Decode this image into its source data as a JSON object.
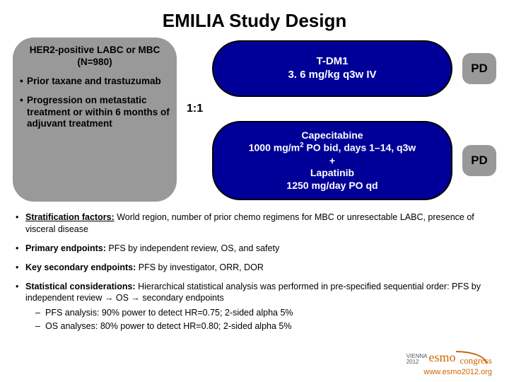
{
  "title": "EMILIA Study Design",
  "colors": {
    "grey_box": "#999999",
    "blue_box": "#000099",
    "accent": "#cc6600",
    "text": "#000000",
    "arm_text": "#ffffff"
  },
  "left_box": {
    "heading": "HER2-positive LABC or MBC (N=980)",
    "bullets": [
      "Prior taxane and trastuzumab",
      "Progression on metastatic treatment or within 6 months of adjuvant treatment"
    ]
  },
  "randomization_ratio": "1:1",
  "arms": {
    "arm1": {
      "line1": "T-DM1",
      "line2": "3. 6 mg/kg q3w IV",
      "pd_label": "PD"
    },
    "arm2": {
      "line1": "Capecitabine",
      "line2_pre": "1000 mg/m",
      "line2_sup": "2",
      "line2_post": " PO bid, days 1–14, q3w",
      "line3": "+",
      "line4": "Lapatinib",
      "line5": "1250 mg/day PO qd",
      "pd_label": "PD"
    }
  },
  "notes": {
    "n1_label": "Stratification factors:",
    "n1_text": " World region, number of prior chemo regimens for MBC or unresectable LABC, presence of visceral disease",
    "n2_label": "Primary endpoints:",
    "n2_text": " PFS by independent review, OS, and safety",
    "n3_label": "Key secondary endpoints:",
    "n3_text": " PFS by investigator, ORR, DOR",
    "n4_label": "Statistical considerations:",
    "n4_text": " Hierarchical statistical analysis was performed in pre-specified sequential order: PFS by independent review → OS → secondary endpoints",
    "sub1": "PFS analysis: 90% power to detect HR=0.75; 2-sided alpha 5%",
    "sub2": "OS analyses: 80% power to detect HR=0.80; 2-sided alpha 5%"
  },
  "footer": {
    "url": "www.esmo2012.org",
    "logo_vienna_top": "VIENNA",
    "logo_vienna_bottom": "2012",
    "logo_esmo": "esmo",
    "logo_congress": "congress"
  }
}
